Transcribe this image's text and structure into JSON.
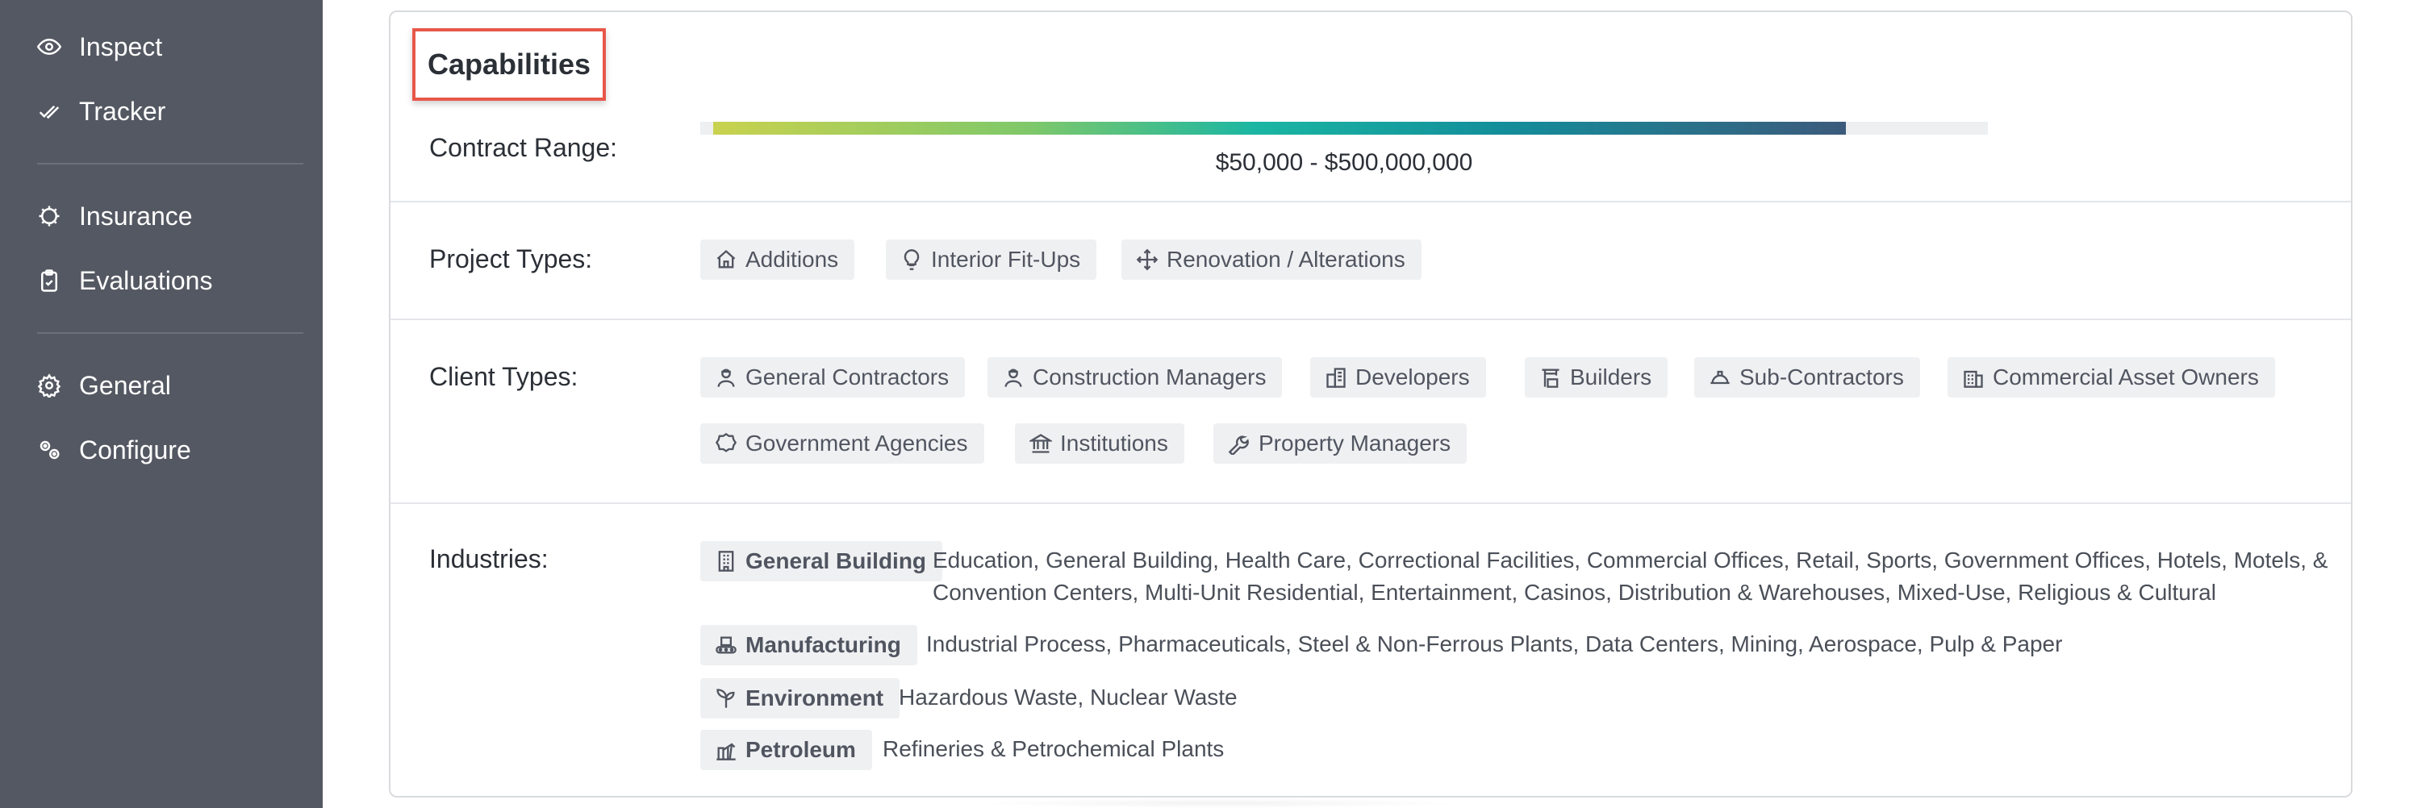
{
  "sidebar": {
    "items": [
      {
        "label": "Inspect",
        "icon": "eye-icon"
      },
      {
        "label": "Tracker",
        "icon": "check-double-icon"
      },
      {
        "label": "Insurance",
        "icon": "shield-gear-icon"
      },
      {
        "label": "Evaluations",
        "icon": "clipboard-icon"
      },
      {
        "label": "General",
        "icon": "gear-icon"
      },
      {
        "label": "Configure",
        "icon": "gears-icon"
      }
    ]
  },
  "capabilities": {
    "title": "Capabilities",
    "contract_range": {
      "label": "Contract Range:",
      "text": "$50,000 - $500,000,000",
      "fill_start_fraction": 0.01,
      "fill_end_fraction": 0.89
    },
    "project_types": {
      "label": "Project Types:",
      "items": [
        {
          "label": "Additions",
          "icon": "home-icon"
        },
        {
          "label": "Interior Fit-Ups",
          "icon": "lightbulb-icon"
        },
        {
          "label": "Renovation / Alterations",
          "icon": "move-arrows-icon"
        }
      ]
    },
    "client_types": {
      "label": "Client Types:",
      "items": [
        {
          "label": "General Contractors",
          "icon": "worker-icon"
        },
        {
          "label": "Construction Managers",
          "icon": "worker-icon"
        },
        {
          "label": "Developers",
          "icon": "buildings-icon"
        },
        {
          "label": "Builders",
          "icon": "crane-icon"
        },
        {
          "label": "Sub-Contractors",
          "icon": "hard-hat-icon"
        },
        {
          "label": "Commercial Asset Owners",
          "icon": "office-building-icon"
        },
        {
          "label": "Government Agencies",
          "icon": "badge-icon"
        },
        {
          "label": "Institutions",
          "icon": "institution-icon"
        },
        {
          "label": "Property Managers",
          "icon": "wrench-icon"
        }
      ]
    },
    "industries": {
      "label": "Industries:",
      "items": [
        {
          "label": "General Building",
          "icon": "building-icon",
          "description": "Education, General Building, Health Care, Correctional Facilities, Commercial Offices, Retail, Sports, Government Offices, Hotels, Motels, & Convention Centers, Multi-Unit Residential, Entertainment, Casinos, Distribution & Warehouses, Mixed-Use, Religious & Cultural"
        },
        {
          "label": "Manufacturing",
          "icon": "conveyor-icon",
          "description": "Industrial Process, Pharmaceuticals, Steel & Non-Ferrous Plants, Data Centers, Mining, Aerospace, Pulp & Paper"
        },
        {
          "label": "Environment",
          "icon": "seedling-icon",
          "description": "Hazardous Waste, Nuclear Waste"
        },
        {
          "label": "Petroleum",
          "icon": "oil-pump-icon",
          "description": "Refineries & Petrochemical Plants"
        }
      ]
    }
  }
}
